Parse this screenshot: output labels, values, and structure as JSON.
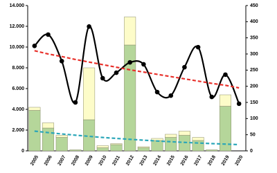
{
  "chart_data": {
    "type": "bar-line",
    "categories": [
      "2005",
      "2006",
      "2007",
      "2008",
      "2009",
      "2010",
      "2011",
      "2012",
      "2013",
      "2014",
      "2015",
      "2016",
      "2017",
      "2018",
      "2019",
      "2020"
    ],
    "series": [
      {
        "kind": "bar",
        "color": "#b5d69a",
        "values": [
          3900,
          2200,
          1300,
          100,
          3000,
          300,
          600,
          10200,
          300,
          1000,
          1300,
          1500,
          1000,
          100,
          4300,
          0
        ]
      },
      {
        "kind": "bar",
        "color": "#fdfcc9",
        "values": [
          300,
          500,
          200,
          0,
          5000,
          200,
          100,
          2700,
          100,
          200,
          300,
          400,
          300,
          0,
          1100,
          0
        ]
      },
      {
        "kind": "line",
        "axis": "y2",
        "color": "#000000",
        "values": [
          325,
          360,
          278,
          150,
          385,
          225,
          242,
          274,
          268,
          182,
          171,
          259,
          321,
          167,
          236,
          146
        ]
      },
      {
        "kind": "trend",
        "axis": "y2",
        "color": "#e8302a",
        "values": [
          310,
          300,
          292,
          283,
          275,
          267,
          259,
          251,
          244,
          237,
          230,
          223,
          216,
          209,
          203,
          195
        ]
      },
      {
        "kind": "trend",
        "color": "#2aa6b8",
        "values": [
          1900,
          1760,
          1630,
          1510,
          1400,
          1290,
          1200,
          1110,
          1030,
          950,
          880,
          815,
          755,
          700,
          650,
          600
        ]
      }
    ],
    "ylim": [
      0,
      14000
    ],
    "yticks": [
      0,
      {
        "value": 2000,
        "label": "2.000"
      },
      {
        "value": 4000,
        "label": "4.000"
      },
      {
        "value": 6000,
        "label": "6.000"
      },
      {
        "value": 8000,
        "label": "8.000"
      },
      {
        "value": 10000,
        "label": "10.000"
      },
      {
        "value": 12000,
        "label": "12.000"
      },
      {
        "value": 14000,
        "label": "14.000"
      }
    ],
    "y2lim": [
      0,
      450
    ],
    "y2ticks": [
      0,
      50,
      100,
      150,
      200,
      250,
      300,
      350,
      400,
      450
    ]
  }
}
